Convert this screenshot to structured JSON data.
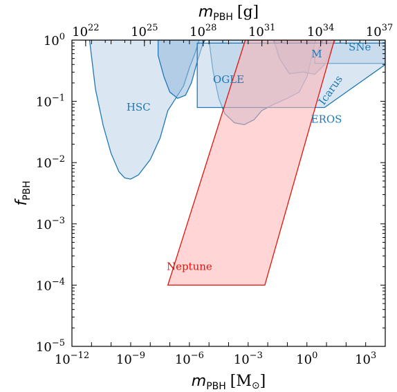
{
  "chart_data": {
    "type": "area",
    "xscale": "log",
    "yscale": "log",
    "xlim": [
      1e-12,
      10000.0
    ],
    "ylim": [
      1e-05,
      1
    ],
    "xlabel": {
      "base": "m",
      "sub": "PBH",
      "units": "[M",
      "sun": "⊙",
      "close": "]"
    },
    "ylabel": {
      "base": "f",
      "sub": "PBH"
    },
    "top_axis": {
      "label": {
        "base": "m",
        "sub": "PBH",
        "units": "[g]"
      },
      "ticks": [
        {
          "mantissa": "10",
          "exp": "22",
          "grams": 1e+22
        },
        {
          "mantissa": "10",
          "exp": "25",
          "grams": 1e+25
        },
        {
          "mantissa": "10",
          "exp": "28",
          "grams": 1e+28
        },
        {
          "mantissa": "10",
          "exp": "31",
          "grams": 1e+31
        },
        {
          "mantissa": "10",
          "exp": "34",
          "grams": 1e+34
        },
        {
          "mantissa": "10",
          "exp": "37",
          "grams": 1e+37
        }
      ]
    },
    "x_ticks": [
      {
        "mantissa": "10",
        "exp": "−12",
        "value": -12
      },
      {
        "mantissa": "10",
        "exp": "−9",
        "value": -9
      },
      {
        "mantissa": "10",
        "exp": "−6",
        "value": -6
      },
      {
        "mantissa": "10",
        "exp": "−3",
        "value": -3
      },
      {
        "mantissa": "10",
        "exp": "0",
        "value": 0
      },
      {
        "mantissa": "10",
        "exp": "3",
        "value": 3
      }
    ],
    "y_ticks": [
      {
        "mantissa": "10",
        "exp": "0",
        "value": 0
      },
      {
        "mantissa": "10",
        "exp": "−1",
        "value": -1
      },
      {
        "mantissa": "10",
        "exp": "−2",
        "value": -2
      },
      {
        "mantissa": "10",
        "exp": "−3",
        "value": -3
      },
      {
        "mantissa": "10",
        "exp": "−4",
        "value": -4
      },
      {
        "mantissa": "10",
        "exp": "−5",
        "value": -5
      }
    ],
    "regions": [
      {
        "name": "HSC",
        "color": "#1f77b4",
        "fill": "#bcd4ea",
        "label_at": [
          -8.6,
          -1.15
        ],
        "points": [
          [
            -11.6,
            0
          ],
          [
            -11.1,
            0
          ],
          [
            -10.8,
            -0.8
          ],
          [
            -10.4,
            -1.4
          ],
          [
            -10.0,
            -1.85
          ],
          [
            -9.6,
            -2.15
          ],
          [
            -9.3,
            -2.25
          ],
          [
            -9.0,
            -2.27
          ],
          [
            -8.6,
            -2.2
          ],
          [
            -8.0,
            -1.95
          ],
          [
            -7.5,
            -1.6
          ],
          [
            -7.1,
            -1.15
          ],
          [
            -6.7,
            -0.95
          ],
          [
            -6.3,
            -0.75
          ],
          [
            -6.0,
            -0.45
          ],
          [
            -5.7,
            -0.2
          ],
          [
            -5.5,
            0
          ]
        ]
      },
      {
        "name": "OGLE",
        "color": "#1f77b4",
        "fill": "#93b8dc",
        "label_at": [
          -4.0,
          -0.7
        ],
        "points": [
          [
            -7.6,
            0
          ],
          [
            -7.6,
            -0.25
          ],
          [
            -7.3,
            -0.6
          ],
          [
            -7.0,
            -0.85
          ],
          [
            -6.6,
            -0.95
          ],
          [
            -6.2,
            -0.9
          ],
          [
            -5.9,
            -0.7
          ],
          [
            -5.6,
            -0.35
          ],
          [
            -5.3,
            -0.05
          ],
          [
            -5.2,
            0
          ]
        ]
      },
      {
        "name": "EROS",
        "color": "#1f77b4",
        "fill": "#a8c4e2",
        "label_at": [
          1.0,
          -1.35
        ],
        "points": [
          [
            -5.0,
            0
          ],
          [
            -4.8,
            -0.5
          ],
          [
            -4.5,
            -0.95
          ],
          [
            -4.2,
            -1.2
          ],
          [
            -3.7,
            -1.35
          ],
          [
            -3.2,
            -1.38
          ],
          [
            -2.7,
            -1.3
          ],
          [
            -2.3,
            -1.15
          ],
          [
            -1.7,
            -1.05
          ],
          [
            -1.0,
            -0.95
          ],
          [
            -0.4,
            -0.85
          ],
          [
            0.0,
            -0.6
          ],
          [
            0.3,
            -0.2
          ],
          [
            0.45,
            0
          ]
        ]
      },
      {
        "name": "M",
        "color": "#1f77b4",
        "fill": "#93aed0",
        "label_at": [
          0.5,
          -0.28
        ],
        "points": [
          [
            -1.7,
            0
          ],
          [
            -1.4,
            -0.3
          ],
          [
            -0.9,
            -0.55
          ],
          [
            -0.2,
            -0.52
          ],
          [
            0.4,
            -0.56
          ],
          [
            0.9,
            -0.4
          ],
          [
            1.3,
            -0.1
          ],
          [
            1.45,
            0
          ]
        ]
      },
      {
        "name": "SNe",
        "color": "#1f77b4",
        "fill": "#bcd4ea",
        "label_at": [
          2.7,
          -0.17
        ],
        "points": [
          [
            0.4,
            -0.3
          ],
          [
            0.8,
            0
          ],
          [
            4.0,
            0
          ],
          [
            4.0,
            -0.38
          ],
          [
            0.4,
            -0.38
          ]
        ]
      },
      {
        "name": "Icarus",
        "color": "#1f77b4",
        "fill": "#bcd4ea",
        "label_at": [
          1.35,
          -0.85
        ],
        "rotate": -55,
        "points": [
          [
            -5.6,
            -1.1
          ],
          [
            0.9,
            -1.1
          ],
          [
            4.0,
            -0.4
          ],
          [
            4.0,
            -0.05
          ],
          [
            1.2,
            -0.05
          ],
          [
            -5.6,
            -0.05
          ]
        ]
      },
      {
        "name": "Neptune",
        "color": "#e3120b",
        "fill": "#ffb3b3",
        "label_at": [
          -6.0,
          -3.75
        ],
        "points": [
          [
            -7.1,
            -4
          ],
          [
            -2.15,
            -4
          ],
          [
            1.4,
            0
          ],
          [
            -3.15,
            0
          ]
        ]
      }
    ],
    "excluded_band": {
      "y_from": 0,
      "color": "#b3b3b3"
    }
  }
}
